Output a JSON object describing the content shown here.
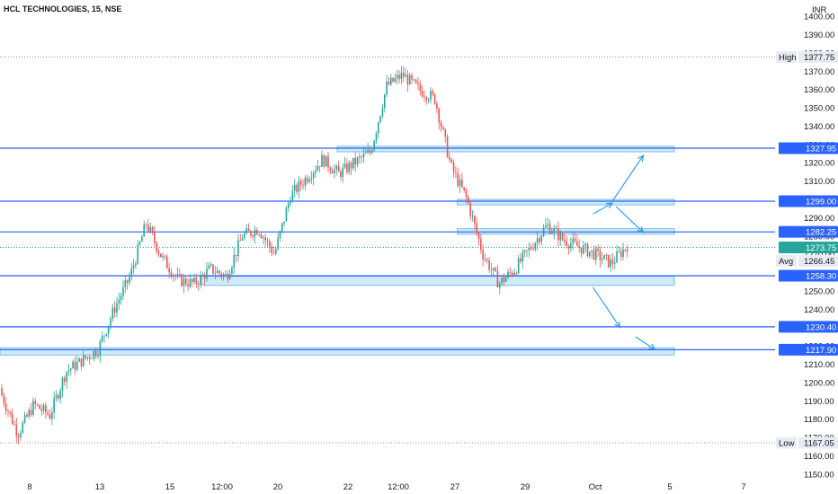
{
  "chart_data": {
    "type": "candlestick",
    "title": "HCL TECHNOLOGIES, 15, NSE",
    "currency": "INR",
    "y_range": [
      1145,
      1403
    ],
    "y_ticks": [
      1150,
      1160,
      1170,
      1180,
      1190,
      1200,
      1210,
      1220,
      1230,
      1240,
      1250,
      1260,
      1270,
      1280,
      1290,
      1300,
      1310,
      1320,
      1330,
      1340,
      1350,
      1360,
      1370,
      1380,
      1390,
      1400
    ],
    "x_ticks": [
      "8",
      "13",
      "15",
      "12:00",
      "20",
      "22",
      "12:00",
      "27",
      "29",
      "Oct",
      "5",
      "7"
    ],
    "price_path": [
      [
        1197,
        1193
      ],
      [
        1188,
        1172
      ],
      [
        1178,
        1188
      ],
      [
        1190,
        1182
      ],
      [
        1196,
        1206
      ],
      [
        1198,
        1212
      ],
      [
        1216,
        1218
      ],
      [
        1232,
        1240
      ],
      [
        1248,
        1258
      ],
      [
        1280,
        1287
      ],
      [
        1276,
        1268
      ],
      [
        1258,
        1256
      ],
      [
        1262,
        1254
      ],
      [
        1261,
        1262
      ],
      [
        1264,
        1258
      ],
      [
        1252,
        1280
      ],
      [
        1288,
        1284
      ],
      [
        1286,
        1270
      ],
      [
        1292,
        1302
      ],
      [
        1305,
        1312
      ],
      [
        1315,
        1322
      ],
      [
        1318,
        1314
      ],
      [
        1323,
        1320
      ],
      [
        1330,
        1326
      ],
      [
        1342,
        1362
      ],
      [
        1371,
        1368
      ],
      [
        1362,
        1360
      ],
      [
        1361,
        1355
      ],
      [
        1345,
        1318
      ],
      [
        1304,
        1300
      ],
      [
        1292,
        1270
      ],
      [
        1258,
        1254
      ],
      [
        1256,
        1262
      ],
      [
        1268,
        1274
      ],
      [
        1296,
        1286
      ],
      [
        1276,
        1278
      ],
      [
        1276,
        1274
      ],
      [
        1276,
        1270
      ],
      [
        1262,
        1265
      ],
      [
        1272,
        1275
      ]
    ],
    "levels": [
      {
        "value": 1327.95,
        "label": "1327.95"
      },
      {
        "value": 1299.0,
        "label": "1299.00"
      },
      {
        "value": 1282.25,
        "label": "1282.25"
      },
      {
        "value": 1258.3,
        "label": "1258.30"
      },
      {
        "value": 1230.4,
        "label": "1230.40"
      },
      {
        "value": 1217.9,
        "label": "1217.90"
      }
    ],
    "zones": [
      {
        "x_from": 0.435,
        "x_to": 0.87,
        "low": 1326,
        "high": 1329
      },
      {
        "x_from": 0.59,
        "x_to": 0.87,
        "low": 1297,
        "high": 1300
      },
      {
        "x_from": 0.59,
        "x_to": 0.87,
        "low": 1281,
        "high": 1284
      },
      {
        "x_from": 0.26,
        "x_to": 0.87,
        "low": 1253,
        "high": 1258
      },
      {
        "x_from": 0.0,
        "x_to": 0.87,
        "low": 1215,
        "high": 1219
      }
    ],
    "last_price": {
      "value": 1273.75,
      "label": "1273.75"
    },
    "average": {
      "value": 1266.45,
      "label": "Avg",
      "value_label": "1266.45"
    },
    "high": {
      "value": 1377.75,
      "label": "High",
      "value_label": "1377.75"
    },
    "low": {
      "value": 1167.05,
      "label": "Low",
      "value_label": "1167.05"
    },
    "projection_arrows": [
      {
        "from": [
          0.765,
          1292
        ],
        "to": [
          0.79,
          1298
        ]
      },
      {
        "from": [
          0.79,
          1299
        ],
        "to": [
          0.83,
          1324
        ]
      },
      {
        "from": [
          0.795,
          1296
        ],
        "to": [
          0.83,
          1282
        ]
      },
      {
        "from": [
          0.765,
          1252
        ],
        "to": [
          0.8,
          1230
        ]
      },
      {
        "from": [
          0.82,
          1225
        ],
        "to": [
          0.845,
          1218
        ]
      }
    ],
    "colors": {
      "up": "#26a69a",
      "down": "#ef5350",
      "level_line": "#2962ff",
      "zone_fill": "#bfe3f5",
      "zone_stroke": "#7cc0e0",
      "last_price_bg": "#26a69a",
      "arrow": "#2196f3",
      "dotted": "#9598a1"
    }
  }
}
